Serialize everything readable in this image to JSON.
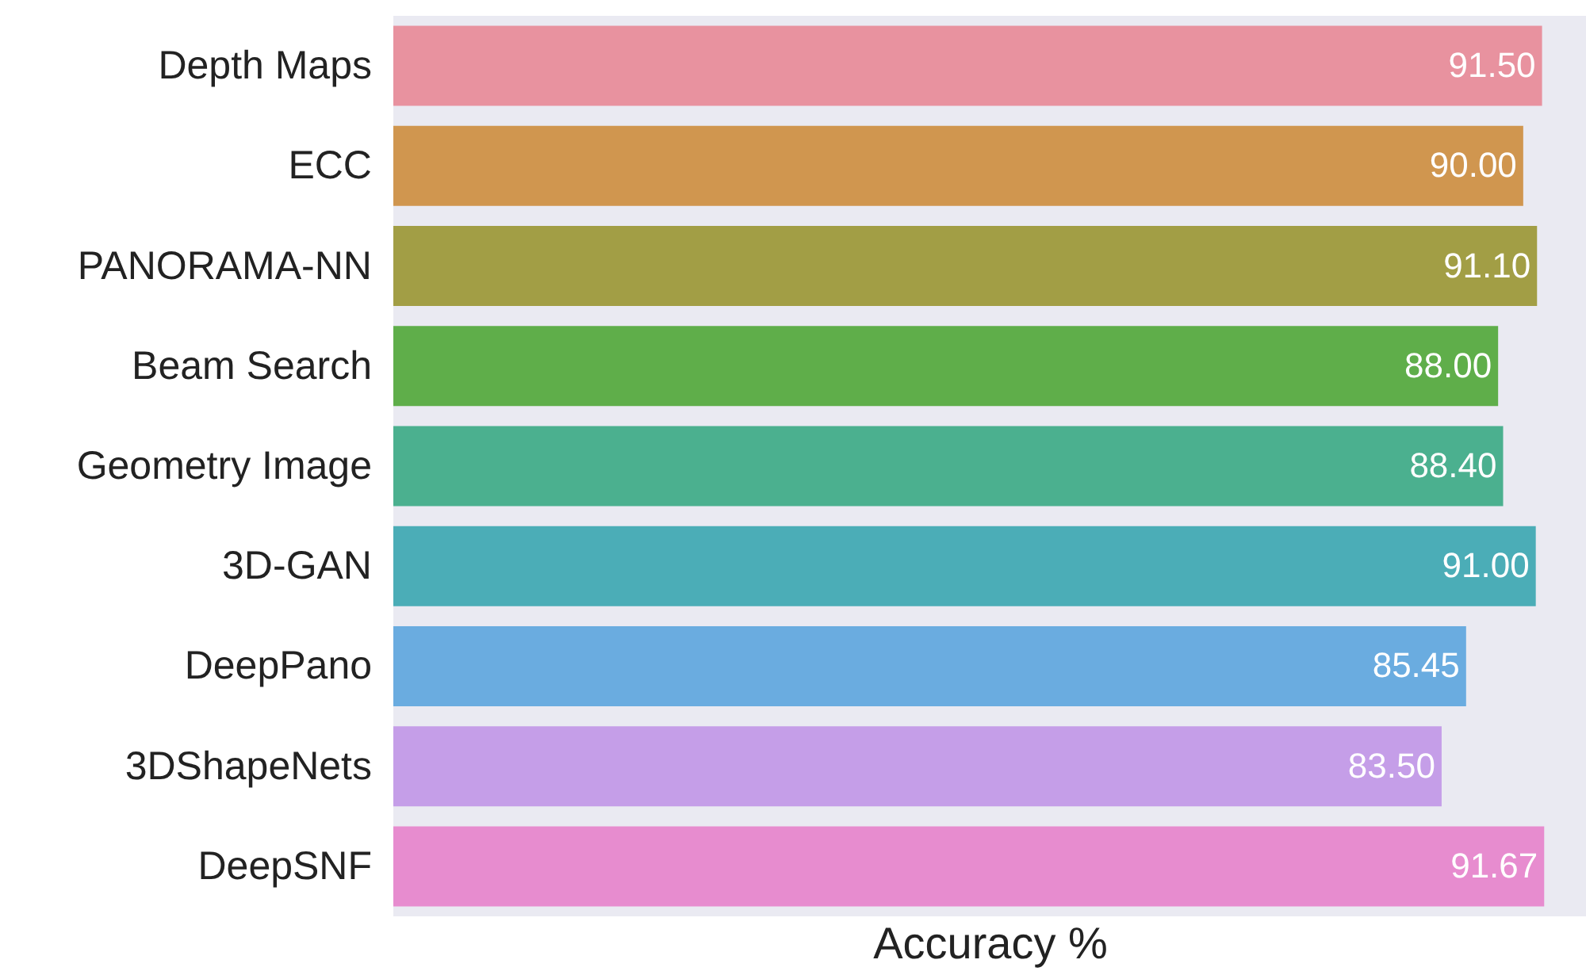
{
  "chart_data": {
    "type": "bar",
    "orientation": "horizontal",
    "xlabel": "Accuracy %",
    "categories": [
      "Depth Maps",
      "ECC",
      "PANORAMA-NN",
      "Beam Search",
      "Geometry Image",
      "3D-GAN",
      "DeepPano",
      "3DShapeNets",
      "DeepSNF"
    ],
    "values": [
      91.5,
      90.0,
      91.1,
      88.0,
      88.4,
      91.0,
      85.45,
      83.5,
      91.67
    ],
    "value_labels": [
      "91.50",
      "90.00",
      "91.10",
      "88.00",
      "88.40",
      "91.00",
      "85.45",
      "83.50",
      "91.67"
    ],
    "colors": [
      "#e8929f",
      "#d0964f",
      "#a29e45",
      "#5fae4a",
      "#4bb08f",
      "#4badb7",
      "#6aace0",
      "#c59ee8",
      "#e78ccf"
    ],
    "xlim": [
      0,
      95
    ],
    "tick_labels": "y"
  }
}
